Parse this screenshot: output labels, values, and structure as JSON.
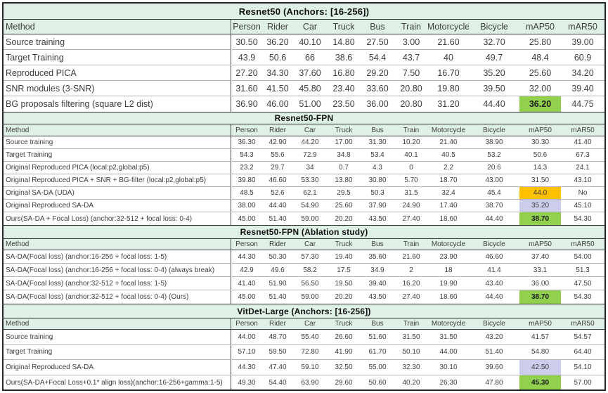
{
  "colors": {
    "header_bg": "#DFF0E6",
    "highlight_green": "#92D050",
    "highlight_orange": "#FFC000",
    "highlight_purple": "#CCCDEB",
    "outer_border": "#262626"
  },
  "chart_data": [
    {
      "type": "table",
      "title": "Resnet50 (Anchors: [16-256])",
      "columns": [
        "Method",
        "Person",
        "Rider",
        "Car",
        "Truck",
        "Bus",
        "Train",
        "Motorcycle",
        "Bicycle",
        "mAP50",
        "mAR50"
      ],
      "rows": [
        {
          "method": "Source training",
          "values": [
            "30.50",
            "36.20",
            "40.10",
            "14.80",
            "27.50",
            "3.00",
            "21.60",
            "32.70",
            "25.80",
            "39.00"
          ]
        },
        {
          "method": "Target Training",
          "values": [
            "43.9",
            "50.6",
            "66",
            "38.6",
            "54.4",
            "43.7",
            "40",
            "49.7",
            "48.4",
            "60.9"
          ]
        },
        {
          "method": "Reproduced PICA",
          "values": [
            "27.20",
            "34.30",
            "37.60",
            "16.80",
            "29.20",
            "7.50",
            "16.70",
            "35.20",
            "25.60",
            "34.20"
          ]
        },
        {
          "method": "SNR modules (3-SNR)",
          "values": [
            "31.60",
            "41.50",
            "45.80",
            "23.40",
            "33.60",
            "20.80",
            "19.80",
            "39.50",
            "32.00",
            "39.40"
          ]
        },
        {
          "method": "BG proposals filtering (square L2 dist)",
          "values": [
            "36.90",
            "46.00",
            "51.00",
            "23.50",
            "36.00",
            "20.80",
            "31.20",
            "44.40",
            "36.20",
            "44.75"
          ],
          "highlights": {
            "8": "green"
          }
        }
      ]
    },
    {
      "type": "table",
      "title": "Resnet50-FPN",
      "columns": [
        "Method",
        "Person",
        "Rider",
        "Car",
        "Truck",
        "Bus",
        "Train",
        "Motorcycle",
        "Bicycle",
        "mAP50",
        "mAR50"
      ],
      "rows": [
        {
          "method": "Source training",
          "values": [
            "36.30",
            "42.90",
            "44.20",
            "17.00",
            "31.30",
            "10.20",
            "21.40",
            "38.90",
            "30.30",
            "41.40"
          ]
        },
        {
          "method": "Target Training",
          "values": [
            "54.3",
            "55.6",
            "72.9",
            "34.8",
            "53.4",
            "40.1",
            "40.5",
            "53.2",
            "50.6",
            "67.3"
          ]
        },
        {
          "method": "Original Reproduced PICA (local:p2,global:p5)",
          "values": [
            "23.2",
            "29.7",
            "34",
            "0.7",
            "4.3",
            "0",
            "2.2",
            "20.6",
            "14.3",
            "24.1"
          ]
        },
        {
          "method": "Original Reproduced PICA + SNR + BG-filter (local:p2,global:p5)",
          "values": [
            "39.80",
            "46.60",
            "53.30",
            "13.80",
            "30.80",
            "5.70",
            "18.70",
            "43.00",
            "31.50",
            "43.10"
          ]
        },
        {
          "method": "Original SA-DA (UDA)",
          "values": [
            "48.5",
            "52.6",
            "62.1",
            "29.5",
            "50.3",
            "31.5",
            "32.4",
            "45.4",
            "44.0",
            "No"
          ],
          "highlights": {
            "8": "orange"
          }
        },
        {
          "method": "Original Reproduced SA-DA",
          "values": [
            "38.00",
            "44.40",
            "54.90",
            "25.60",
            "37.90",
            "24.90",
            "17.40",
            "38.70",
            "35.20",
            "45.10"
          ],
          "highlights": {
            "8": "purple"
          }
        },
        {
          "method": "Ours(SA-DA + Focal Loss) (anchor:32-512 + focal loss: 0-4)",
          "values": [
            "45.00",
            "51.40",
            "59.00",
            "20.20",
            "43.50",
            "27.40",
            "18.60",
            "44.40",
            "38.70",
            "54.30"
          ],
          "highlights": {
            "8": "green"
          }
        }
      ]
    },
    {
      "type": "table",
      "title": "Resnet50-FPN (Ablation study)",
      "columns": [
        "Method",
        "Person",
        "Rider",
        "Car",
        "Truck",
        "Bus",
        "Train",
        "Motorcycle",
        "Bicycle",
        "mAP50",
        "mAR50"
      ],
      "rows": [
        {
          "method": "SA-DA(Focal loss) (anchor:16-256 + focal loss: 1-5)",
          "values": [
            "44.30",
            "50.30",
            "57.30",
            "19.40",
            "35.60",
            "21.60",
            "23.90",
            "46.60",
            "37.40",
            "54.00"
          ]
        },
        {
          "method": "SA-DA(Focal loss) (anchor:16-256 + focal loss: 0-4) (always break)",
          "values": [
            "42.9",
            "49.6",
            "58.2",
            "17.5",
            "34.9",
            "2",
            "18",
            "41.4",
            "33.1",
            "51.3"
          ]
        },
        {
          "method": "SA-DA(Focal loss) (anchor:32-512 + focal loss: 1-5)",
          "values": [
            "41.40",
            "51.90",
            "56.50",
            "19.50",
            "39.40",
            "16.20",
            "19.90",
            "43.40",
            "36.00",
            "47.50"
          ]
        },
        {
          "method": "SA-DA(Focal loss) (anchor:32-512 + focal loss: 0-4) (Ours)",
          "values": [
            "45.00",
            "51.40",
            "59.00",
            "20.20",
            "43.50",
            "27.40",
            "18.60",
            "44.40",
            "38.70",
            "54.30"
          ],
          "highlights": {
            "8": "green"
          }
        }
      ]
    },
    {
      "type": "table",
      "title": "VitDet-Large (Anchors: [16-256])",
      "columns": [
        "Method",
        "Person",
        "Rider",
        "Car",
        "Truck",
        "Bus",
        "Train",
        "Motorcycle",
        "Bicycle",
        "mAP50",
        "mAR50"
      ],
      "rows": [
        {
          "method": "Source training",
          "values": [
            "44.00",
            "48.70",
            "55.40",
            "26.60",
            "51.60",
            "31.50",
            "31.50",
            "43.20",
            "41.57",
            "54.57"
          ]
        },
        {
          "method": "Target Training",
          "values": [
            "57.10",
            "59.50",
            "72.80",
            "41.90",
            "61.70",
            "50.10",
            "44.00",
            "51.40",
            "54.80",
            "64.40"
          ]
        },
        {
          "method": "Original Reproduced SA-DA",
          "values": [
            "44.30",
            "47.40",
            "59.10",
            "32.50",
            "55.00",
            "32.30",
            "30.10",
            "39.60",
            "42.50",
            "54.10"
          ],
          "highlights": {
            "8": "purple"
          }
        },
        {
          "method": "Ours(SA-DA+Focal Loss+0.1* align loss)(anchor:16-256+gamma:1-5)",
          "values": [
            "49.30",
            "54.40",
            "63.90",
            "29.60",
            "50.60",
            "40.20",
            "26.30",
            "47.80",
            "45.30",
            "57.00"
          ],
          "highlights": {
            "8": "green"
          }
        }
      ]
    }
  ]
}
